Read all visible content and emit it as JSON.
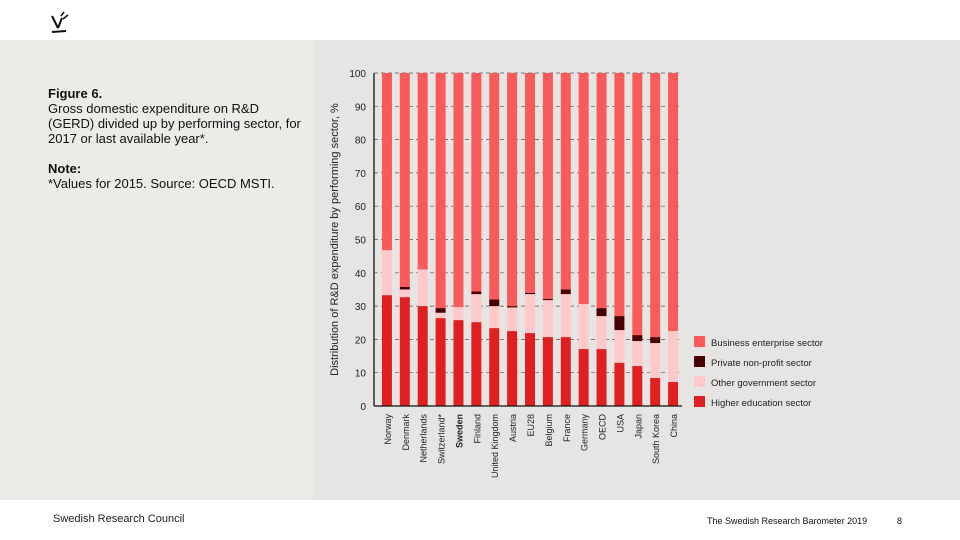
{
  "slide": {
    "figure_title": "Figure 6.",
    "figure_description": "Gross domestic expenditure on R&D (GERD) divided up by performing sector, for 2017 or last available year*.",
    "note_label": "Note:",
    "note_text": "*Values for 2015. Source: OECD MSTI.",
    "footer_org": "Swedish Research Council",
    "footer_title": "The Swedish Research Barometer 2019",
    "page_number": "8",
    "logo_icon": "swedish-research-council-logo"
  },
  "colors": {
    "business": "#fa5a5a",
    "private_nonprofit": "#4a0000",
    "other_government": "#ffc9c9",
    "higher_education": "#e02020",
    "axis": "#111111",
    "grid": "#555555"
  },
  "chart_data": {
    "type": "bar",
    "stacked": true,
    "title": "",
    "xlabel": "",
    "ylabel": "Distribution of R&D expenditure by performing sector, %",
    "ylim": [
      0,
      100
    ],
    "yticks": [
      0,
      10,
      20,
      30,
      40,
      50,
      60,
      70,
      80,
      90,
      100
    ],
    "grid": true,
    "legend_position": "right-bottom",
    "categories": [
      "Norway",
      "Denmark",
      "Netherlands",
      "Switzerland*",
      "Sweden",
      "Finland",
      "United Kingdom",
      "Austria",
      "EU28",
      "Belgium",
      "France",
      "Germany",
      "OECD",
      "USA",
      "Japan",
      "South Korea",
      "China"
    ],
    "highlight_category": "Sweden",
    "series": [
      {
        "name": "Higher education sector",
        "key": "higher_education",
        "values": [
          33.3,
          32.7,
          30.0,
          26.4,
          25.8,
          25.2,
          23.4,
          22.5,
          21.9,
          20.7,
          20.7,
          17.1,
          17.1,
          13.0,
          12.0,
          8.4,
          7.2
        ]
      },
      {
        "name": "Other government sector",
        "key": "other_government",
        "values": [
          13.5,
          2.3,
          11.0,
          1.6,
          3.9,
          8.4,
          6.6,
          7.1,
          11.7,
          11.1,
          12.9,
          13.5,
          9.9,
          9.8,
          7.5,
          10.5,
          15.3
        ]
      },
      {
        "name": "Private non-profit sector",
        "key": "private_nonprofit",
        "values": [
          0.0,
          0.8,
          0.0,
          1.4,
          0.0,
          0.8,
          2.0,
          0.4,
          0.4,
          0.4,
          1.4,
          0.0,
          2.4,
          4.2,
          1.8,
          1.8,
          0.0
        ]
      },
      {
        "name": "Business enterprise sector",
        "key": "business",
        "values": [
          53.2,
          64.2,
          59.0,
          70.6,
          70.3,
          65.6,
          68.0,
          70.0,
          66.0,
          67.8,
          65.0,
          69.4,
          70.6,
          73.0,
          78.7,
          79.3,
          77.5
        ]
      }
    ],
    "legend_order": [
      "Business enterprise sector",
      "Private non-profit sector",
      "Other government sector",
      "Higher education sector"
    ]
  }
}
